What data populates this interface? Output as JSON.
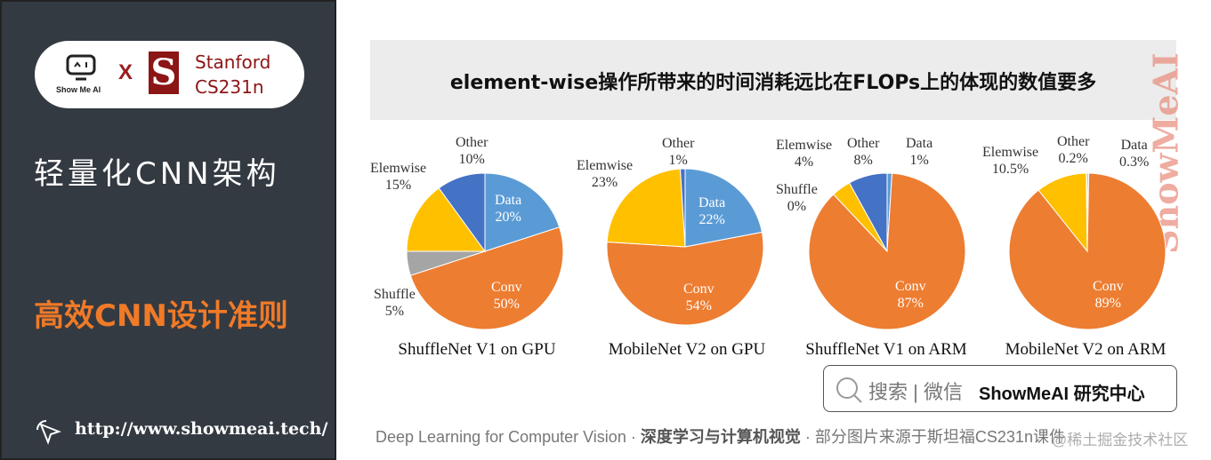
{
  "sidebar": {
    "logo_text": "Show Me AI",
    "x": "X",
    "stanford_s": "S",
    "stanford": "Stanford",
    "course": "CS231n",
    "section": "轻量化CNN架构",
    "topic": "高效CNN设计准则",
    "url": "http://www.showmeai.tech/"
  },
  "slide": {
    "title": "element-wise操作所带来的时间消耗远比在FLOPs上的体现的数值要多",
    "side_watermark": "ShowMeAI"
  },
  "search": {
    "text": "搜索 | 微信",
    "brand": "ShowMeAI 研究中心"
  },
  "footer": {
    "part1": "Deep Learning for Computer Vision",
    "sep": "·",
    "part2": "深度学习与计算机视觉",
    "part3": "部分图片来源于斯坦福CS231n课件",
    "watermark": "@稀土掘金技术社区"
  },
  "colors": {
    "Data": "#5b9bd5",
    "Conv": "#ed7d31",
    "Shuffle": "#a5a5a5",
    "Elemwise": "#ffc000",
    "Other": "#4472c4"
  },
  "chart_data": [
    {
      "type": "pie",
      "title": "ShuffleNet V1 on GPU",
      "labels": [
        "Data",
        "Conv",
        "Shuffle",
        "Elemwise",
        "Other"
      ],
      "values": [
        20,
        50,
        5,
        15,
        10
      ]
    },
    {
      "type": "pie",
      "title": "MobileNet V2 on GPU",
      "labels": [
        "Data",
        "Conv",
        "Elemwise",
        "Other"
      ],
      "values": [
        22,
        54,
        23,
        1
      ]
    },
    {
      "type": "pie",
      "title": "ShuffleNet V1 on ARM",
      "labels": [
        "Data",
        "Conv",
        "Shuffle",
        "Elemwise",
        "Other"
      ],
      "values": [
        1,
        87,
        0,
        4,
        8
      ]
    },
    {
      "type": "pie",
      "title": "MobileNet V2 on ARM",
      "labels": [
        "Data",
        "Conv",
        "Elemwise",
        "Other"
      ],
      "values": [
        0.3,
        89,
        10.5,
        0.2
      ]
    }
  ]
}
